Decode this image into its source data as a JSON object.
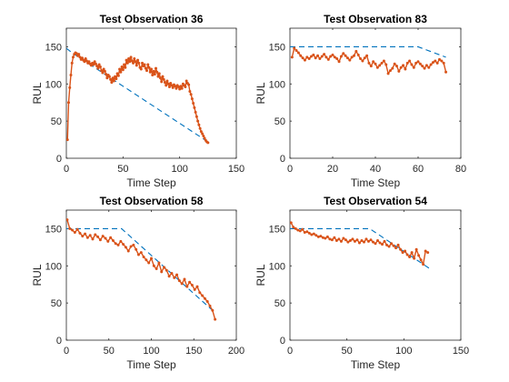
{
  "figure": {
    "background": "#ffffff"
  },
  "colors": {
    "predicted": "#D95319",
    "true": "#0072BD",
    "axis": "#262626"
  },
  "chart_data": [
    {
      "type": "line",
      "title": "Test Observation 36",
      "xlabel": "Time Step",
      "ylabel": "RUL",
      "xlim": [
        0,
        150
      ],
      "ylim": [
        0,
        175
      ],
      "xticks": [
        0,
        50,
        100,
        150
      ],
      "yticks": [
        0,
        50,
        100,
        150
      ],
      "series": [
        {
          "kind": "true",
          "style": "dashed",
          "x": [
            0,
            5,
            125
          ],
          "y": [
            148,
            142,
            22
          ]
        },
        {
          "kind": "predicted",
          "style": "line-dots",
          "x": [
            1,
            2,
            3,
            4,
            5,
            6,
            7,
            8,
            9,
            10,
            11,
            12,
            13,
            14,
            15,
            16,
            17,
            18,
            19,
            20,
            21,
            22,
            23,
            24,
            25,
            26,
            27,
            28,
            29,
            30,
            31,
            32,
            33,
            34,
            35,
            36,
            37,
            38,
            39,
            40,
            41,
            42,
            43,
            44,
            45,
            46,
            47,
            48,
            49,
            50,
            51,
            52,
            53,
            54,
            55,
            56,
            57,
            58,
            59,
            60,
            61,
            62,
            63,
            64,
            65,
            66,
            67,
            68,
            69,
            70,
            71,
            72,
            73,
            74,
            75,
            76,
            77,
            78,
            79,
            80,
            81,
            82,
            83,
            84,
            85,
            86,
            87,
            88,
            89,
            90,
            91,
            92,
            93,
            94,
            95,
            96,
            97,
            98,
            99,
            100,
            101,
            102,
            103,
            104,
            105,
            106,
            107,
            108,
            109,
            110,
            111,
            112,
            113,
            114,
            115,
            116,
            117,
            118,
            119,
            120,
            121,
            122,
            123,
            124,
            125
          ],
          "y": [
            25,
            75,
            95,
            112,
            128,
            136,
            140,
            142,
            141,
            138,
            140,
            136,
            133,
            135,
            132,
            130,
            134,
            131,
            128,
            130,
            127,
            125,
            128,
            126,
            130,
            127,
            124,
            121,
            126,
            123,
            118,
            115,
            120,
            117,
            113,
            108,
            112,
            110,
            106,
            102,
            108,
            104,
            110,
            107,
            114,
            111,
            120,
            116,
            123,
            119,
            126,
            122,
            132,
            128,
            134,
            130,
            136,
            131,
            128,
            134,
            130,
            125,
            132,
            128,
            122,
            120,
            128,
            124,
            126,
            121,
            118,
            126,
            122,
            116,
            120,
            112,
            117,
            113,
            121,
            116,
            110,
            114,
            108,
            103,
            110,
            106,
            102,
            98,
            104,
            100,
            96,
            101,
            98,
            95,
            99,
            97,
            94,
            98,
            96,
            93,
            97,
            94,
            100,
            98,
            96,
            104,
            101,
            99,
            90,
            86,
            80,
            74,
            68,
            62,
            56,
            50,
            45,
            40,
            36,
            33,
            30,
            27,
            24,
            22,
            21
          ]
        }
      ]
    },
    {
      "type": "line",
      "title": "Test Observation 83",
      "xlabel": "Time Step",
      "ylabel": "RUL",
      "xlim": [
        0,
        80
      ],
      "ylim": [
        0,
        175
      ],
      "xticks": [
        0,
        20,
        40,
        60,
        80
      ],
      "yticks": [
        0,
        50,
        100,
        150
      ],
      "series": [
        {
          "kind": "true",
          "style": "dashed",
          "x": [
            0,
            60,
            73
          ],
          "y": [
            150,
            150,
            136
          ]
        },
        {
          "kind": "predicted",
          "style": "line-dots",
          "x": [
            1,
            2,
            3,
            4,
            5,
            6,
            7,
            8,
            9,
            10,
            11,
            12,
            13,
            14,
            15,
            16,
            17,
            18,
            19,
            20,
            21,
            22,
            23,
            24,
            25,
            26,
            27,
            28,
            29,
            30,
            31,
            32,
            33,
            34,
            35,
            36,
            37,
            38,
            39,
            40,
            41,
            42,
            43,
            44,
            45,
            46,
            47,
            48,
            49,
            50,
            51,
            52,
            53,
            54,
            55,
            56,
            57,
            58,
            59,
            60,
            61,
            62,
            63,
            64,
            65,
            66,
            67,
            68,
            69,
            70,
            71,
            72,
            73
          ],
          "y": [
            136,
            148,
            145,
            142,
            138,
            135,
            132,
            136,
            134,
            137,
            139,
            135,
            138,
            134,
            137,
            140,
            136,
            133,
            137,
            139,
            136,
            134,
            130,
            137,
            141,
            138,
            135,
            132,
            136,
            138,
            144,
            139,
            134,
            131,
            135,
            138,
            128,
            124,
            130,
            127,
            122,
            125,
            128,
            131,
            126,
            114,
            118,
            121,
            127,
            124,
            117,
            122,
            125,
            120,
            128,
            131,
            126,
            122,
            128,
            130,
            127,
            124,
            121,
            125,
            122,
            126,
            129,
            131,
            128,
            133,
            131,
            128,
            116
          ]
        }
      ]
    },
    {
      "type": "line",
      "title": "Test Observation 58",
      "xlabel": "Time Step",
      "ylabel": "RUL",
      "xlim": [
        0,
        200
      ],
      "ylim": [
        0,
        175
      ],
      "xticks": [
        0,
        50,
        100,
        150,
        200
      ],
      "yticks": [
        0,
        50,
        100,
        150
      ],
      "series": [
        {
          "kind": "true",
          "style": "dashed",
          "x": [
            0,
            65,
            175
          ],
          "y": [
            150,
            150,
            37
          ]
        },
        {
          "kind": "predicted",
          "style": "line-dots",
          "x": [
            1,
            4,
            7,
            10,
            13,
            16,
            19,
            22,
            25,
            28,
            31,
            34,
            37,
            40,
            43,
            46,
            49,
            52,
            55,
            58,
            61,
            64,
            67,
            70,
            73,
            76,
            79,
            82,
            85,
            88,
            91,
            94,
            97,
            100,
            103,
            106,
            109,
            112,
            115,
            118,
            121,
            124,
            127,
            130,
            133,
            136,
            139,
            142,
            145,
            148,
            151,
            154,
            157,
            160,
            163,
            166,
            169,
            172,
            175
          ],
          "y": [
            162,
            150,
            148,
            145,
            149,
            144,
            140,
            143,
            138,
            141,
            136,
            142,
            139,
            135,
            140,
            137,
            133,
            138,
            134,
            130,
            128,
            133,
            129,
            125,
            120,
            126,
            128,
            122,
            115,
            118,
            112,
            108,
            104,
            110,
            100,
            96,
            104,
            92,
            98,
            94,
            86,
            90,
            84,
            88,
            80,
            76,
            82,
            72,
            78,
            74,
            68,
            72,
            64,
            60,
            56,
            52,
            46,
            40,
            28
          ]
        }
      ]
    },
    {
      "type": "line",
      "title": "Test Observation 54",
      "xlabel": "Time Step",
      "ylabel": "RUL",
      "xlim": [
        0,
        150
      ],
      "ylim": [
        0,
        175
      ],
      "xticks": [
        0,
        50,
        100,
        150
      ],
      "yticks": [
        0,
        50,
        100,
        150
      ],
      "series": [
        {
          "kind": "true",
          "style": "dashed",
          "x": [
            0,
            70,
            122
          ],
          "y": [
            150,
            150,
            97
          ]
        },
        {
          "kind": "predicted",
          "style": "line-dots",
          "x": [
            1,
            3,
            5,
            7,
            9,
            11,
            13,
            15,
            17,
            19,
            21,
            23,
            25,
            27,
            29,
            31,
            33,
            35,
            37,
            39,
            41,
            43,
            45,
            47,
            49,
            51,
            53,
            55,
            57,
            59,
            61,
            63,
            65,
            67,
            69,
            71,
            73,
            75,
            77,
            79,
            81,
            83,
            85,
            87,
            89,
            91,
            93,
            95,
            97,
            99,
            101,
            103,
            105,
            107,
            109,
            111,
            113,
            115,
            117,
            119,
            121
          ],
          "y": [
            158,
            152,
            150,
            148,
            147,
            149,
            145,
            146,
            144,
            142,
            143,
            141,
            139,
            140,
            138,
            137,
            139,
            136,
            135,
            138,
            134,
            136,
            133,
            137,
            135,
            132,
            134,
            136,
            133,
            135,
            131,
            134,
            132,
            136,
            133,
            135,
            132,
            130,
            134,
            131,
            129,
            133,
            128,
            126,
            130,
            127,
            124,
            128,
            122,
            118,
            120,
            115,
            112,
            118,
            110,
            122,
            114,
            108,
            102,
            120,
            118
          ]
        }
      ]
    }
  ]
}
